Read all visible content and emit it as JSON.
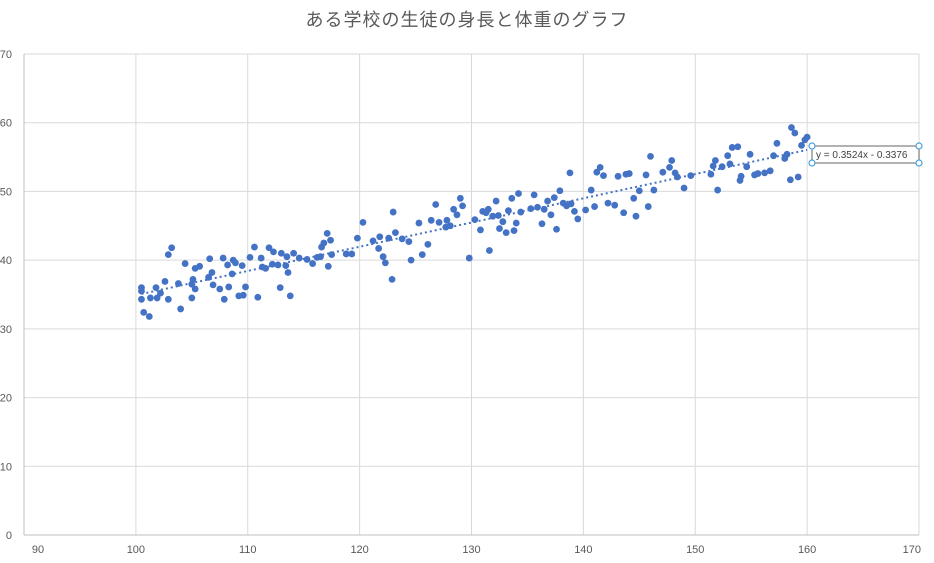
{
  "chart_data": {
    "type": "scatter",
    "title": "ある学校の生徒の身長と体重のグラフ",
    "xlabel": "",
    "ylabel": "",
    "xlim": [
      90,
      170
    ],
    "ylim": [
      0,
      70
    ],
    "xticks": [
      90,
      100,
      110,
      120,
      130,
      140,
      150,
      160,
      170
    ],
    "yticks": [
      0,
      10,
      20,
      30,
      40,
      50,
      60,
      70
    ],
    "x_tick_labels": [
      "90",
      "100",
      "110",
      "120",
      "130",
      "140",
      "150",
      "160",
      "170"
    ],
    "y_tick_labels": [
      "0",
      "10",
      "20",
      "30",
      "40",
      "50",
      "60",
      "70"
    ],
    "grid": true,
    "legend": "none",
    "colors": {
      "points": "#4472C4",
      "trendline": "#4472C4",
      "grid": "#D9D9D9",
      "axis": "#BFBFBF",
      "label_box_border": "#404040",
      "handle": "#4A9FD8"
    },
    "trendline": {
      "type": "linear",
      "slope": 0.3524,
      "intercept": -0.3376,
      "x_range": [
        100.5,
        160
      ],
      "equation_label": "y = 0.3524x - 0.3376"
    },
    "series": [
      {
        "points": [
          [
            100.5,
            34.3
          ],
          [
            100.5,
            35.5
          ],
          [
            100.5,
            36.0
          ],
          [
            100.7,
            32.4
          ],
          [
            101.2,
            31.8
          ],
          [
            101.3,
            34.5
          ],
          [
            101.8,
            36.0
          ],
          [
            101.9,
            34.5
          ],
          [
            102.2,
            35.2
          ],
          [
            102.6,
            36.9
          ],
          [
            102.9,
            34.3
          ],
          [
            102.9,
            40.8
          ],
          [
            103.2,
            41.8
          ],
          [
            103.8,
            36.6
          ],
          [
            104.0,
            32.9
          ],
          [
            104.4,
            39.5
          ],
          [
            105.0,
            34.5
          ],
          [
            105.0,
            36.5
          ],
          [
            105.1,
            37.2
          ],
          [
            105.3,
            35.8
          ],
          [
            105.3,
            38.8
          ],
          [
            105.7,
            39.1
          ],
          [
            106.5,
            37.5
          ],
          [
            106.6,
            40.2
          ],
          [
            106.8,
            38.2
          ],
          [
            106.9,
            36.4
          ],
          [
            107.5,
            35.8
          ],
          [
            107.8,
            40.3
          ],
          [
            107.9,
            34.3
          ],
          [
            108.2,
            39.3
          ],
          [
            108.3,
            36.1
          ],
          [
            108.6,
            38.0
          ],
          [
            108.7,
            40.0
          ],
          [
            108.9,
            39.6
          ],
          [
            109.2,
            34.8
          ],
          [
            109.5,
            39.2
          ],
          [
            109.6,
            34.9
          ],
          [
            109.8,
            36.1
          ],
          [
            110.2,
            40.4
          ],
          [
            110.6,
            41.9
          ],
          [
            110.9,
            34.6
          ],
          [
            111.2,
            40.3
          ],
          [
            111.3,
            39.0
          ],
          [
            111.6,
            38.8
          ],
          [
            111.9,
            41.8
          ],
          [
            112.2,
            39.4
          ],
          [
            112.3,
            41.2
          ],
          [
            112.7,
            39.3
          ],
          [
            112.9,
            36.0
          ],
          [
            113.0,
            41.0
          ],
          [
            113.4,
            39.2
          ],
          [
            113.5,
            40.5
          ],
          [
            113.6,
            38.2
          ],
          [
            113.8,
            34.8
          ],
          [
            114.1,
            41.0
          ],
          [
            114.6,
            40.3
          ],
          [
            115.3,
            40.1
          ],
          [
            115.8,
            39.5
          ],
          [
            116.2,
            40.4
          ],
          [
            116.5,
            40.5
          ],
          [
            116.6,
            41.9
          ],
          [
            116.8,
            42.5
          ],
          [
            117.1,
            43.9
          ],
          [
            117.2,
            39.1
          ],
          [
            117.4,
            42.9
          ],
          [
            117.5,
            40.8
          ],
          [
            118.8,
            40.9
          ],
          [
            119.3,
            40.9
          ],
          [
            119.8,
            43.2
          ],
          [
            120.3,
            45.5
          ],
          [
            121.2,
            42.8
          ],
          [
            121.7,
            41.7
          ],
          [
            121.8,
            43.4
          ],
          [
            122.1,
            40.5
          ],
          [
            122.3,
            39.6
          ],
          [
            122.6,
            43.2
          ],
          [
            122.9,
            37.2
          ],
          [
            123.0,
            47.0
          ],
          [
            123.2,
            44.0
          ],
          [
            123.8,
            43.1
          ],
          [
            124.4,
            42.7
          ],
          [
            124.6,
            40.0
          ],
          [
            125.3,
            45.4
          ],
          [
            125.6,
            40.8
          ],
          [
            126.1,
            42.3
          ],
          [
            126.4,
            45.8
          ],
          [
            126.8,
            48.1
          ],
          [
            127.1,
            45.5
          ],
          [
            127.7,
            44.8
          ],
          [
            127.8,
            45.8
          ],
          [
            128.1,
            45.0
          ],
          [
            128.4,
            47.4
          ],
          [
            128.7,
            46.6
          ],
          [
            129.0,
            49.0
          ],
          [
            129.2,
            47.9
          ],
          [
            129.8,
            40.3
          ],
          [
            130.3,
            45.9
          ],
          [
            130.8,
            44.4
          ],
          [
            131.0,
            47.1
          ],
          [
            131.3,
            46.9
          ],
          [
            131.5,
            47.4
          ],
          [
            131.6,
            41.4
          ],
          [
            131.9,
            46.4
          ],
          [
            132.2,
            48.6
          ],
          [
            132.4,
            46.5
          ],
          [
            132.5,
            44.6
          ],
          [
            132.8,
            45.6
          ],
          [
            133.1,
            44.0
          ],
          [
            133.3,
            47.2
          ],
          [
            133.6,
            49.0
          ],
          [
            133.8,
            44.3
          ],
          [
            134.0,
            45.4
          ],
          [
            134.2,
            49.7
          ],
          [
            134.4,
            47.0
          ],
          [
            135.3,
            47.5
          ],
          [
            135.6,
            49.5
          ],
          [
            135.9,
            47.7
          ],
          [
            136.3,
            45.3
          ],
          [
            136.5,
            47.4
          ],
          [
            136.8,
            48.6
          ],
          [
            137.1,
            46.6
          ],
          [
            137.4,
            49.1
          ],
          [
            137.6,
            44.5
          ],
          [
            137.9,
            50.1
          ],
          [
            138.2,
            48.3
          ],
          [
            138.5,
            47.9
          ],
          [
            138.8,
            52.7
          ],
          [
            138.9,
            48.2
          ],
          [
            139.2,
            47.1
          ],
          [
            139.5,
            46.0
          ],
          [
            140.2,
            47.3
          ],
          [
            140.7,
            50.2
          ],
          [
            141.0,
            47.8
          ],
          [
            141.2,
            52.8
          ],
          [
            141.5,
            53.5
          ],
          [
            141.8,
            52.3
          ],
          [
            142.2,
            48.3
          ],
          [
            142.8,
            48.0
          ],
          [
            143.1,
            52.2
          ],
          [
            143.6,
            46.9
          ],
          [
            143.8,
            52.5
          ],
          [
            144.1,
            52.6
          ],
          [
            144.5,
            49.0
          ],
          [
            144.7,
            46.4
          ],
          [
            145.0,
            50.1
          ],
          [
            145.6,
            52.4
          ],
          [
            145.8,
            47.8
          ],
          [
            146.0,
            55.1
          ],
          [
            146.3,
            50.2
          ],
          [
            147.1,
            52.8
          ],
          [
            147.7,
            53.5
          ],
          [
            147.9,
            54.5
          ],
          [
            148.2,
            52.7
          ],
          [
            148.4,
            52.1
          ],
          [
            149.0,
            50.5
          ],
          [
            149.6,
            52.3
          ],
          [
            151.4,
            52.5
          ],
          [
            151.6,
            53.7
          ],
          [
            151.8,
            54.5
          ],
          [
            152.0,
            50.2
          ],
          [
            152.4,
            53.6
          ],
          [
            152.9,
            55.2
          ],
          [
            153.1,
            54.0
          ],
          [
            153.3,
            56.4
          ],
          [
            153.8,
            56.5
          ],
          [
            154.0,
            51.6
          ],
          [
            154.1,
            52.2
          ],
          [
            154.6,
            53.6
          ],
          [
            154.9,
            55.4
          ],
          [
            155.3,
            52.4
          ],
          [
            155.6,
            52.6
          ],
          [
            156.2,
            52.7
          ],
          [
            156.7,
            53.0
          ],
          [
            157.0,
            55.2
          ],
          [
            157.3,
            57.0
          ],
          [
            158.0,
            54.8
          ],
          [
            158.2,
            55.4
          ],
          [
            158.5,
            51.7
          ],
          [
            158.6,
            59.3
          ],
          [
            158.9,
            58.5
          ],
          [
            159.2,
            52.1
          ],
          [
            159.5,
            56.7
          ],
          [
            159.8,
            57.5
          ],
          [
            160.0,
            57.9
          ]
        ]
      }
    ]
  }
}
